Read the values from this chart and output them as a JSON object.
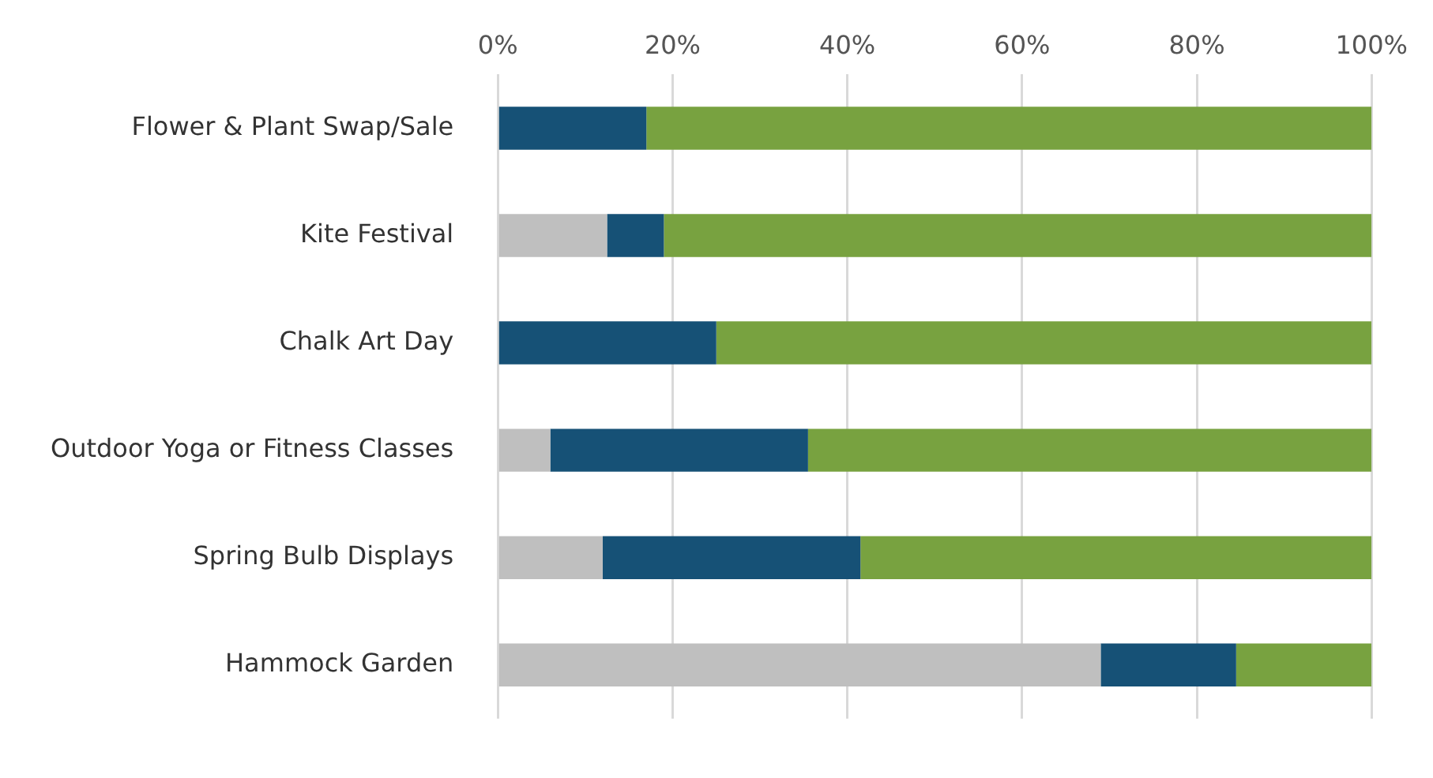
{
  "chart_data": {
    "type": "bar",
    "orientation": "horizontal",
    "stacked": true,
    "categories": [
      "Flower & Plant Swap/Sale",
      "Kite Festival",
      "Chalk Art Day",
      "Outdoor Yoga or Fitness Classes",
      "Spring Bulb Displays",
      "Hammock Garden"
    ],
    "series": [
      {
        "color": "#bfbfbf",
        "values": [
          0,
          12.5,
          0,
          6,
          12,
          69
        ]
      },
      {
        "color": "#165176",
        "values": [
          17,
          6.5,
          25,
          29.5,
          29.5,
          15.5
        ]
      },
      {
        "color": "#78a240",
        "values": [
          83,
          81,
          75,
          64.5,
          58.5,
          15.5
        ]
      }
    ],
    "xlim": [
      0,
      100
    ],
    "xticks": [
      {
        "value": 0,
        "label": "0%"
      },
      {
        "value": 20,
        "label": "20%"
      },
      {
        "value": 40,
        "label": "40%"
      },
      {
        "value": 60,
        "label": "60%"
      },
      {
        "value": 80,
        "label": "80%"
      },
      {
        "value": 100,
        "label": "100%"
      }
    ],
    "grid": "x",
    "legend": false
  }
}
